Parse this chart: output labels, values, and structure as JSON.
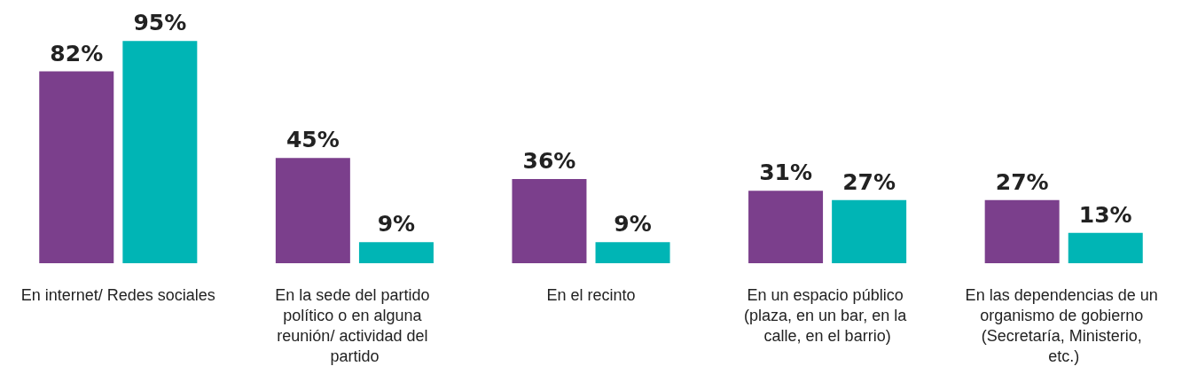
{
  "chart_data": {
    "type": "bar",
    "categories": [
      "En internet/ Redes sociales",
      "En la sede del partido político o en alguna reunión/ actividad del partido",
      "En el recinto",
      "En un espacio público (plaza, en un bar, en la calle, en el barrio)",
      "En las dependencias de un organismo de gobierno (Secretaría, Ministerio, etc.)"
    ],
    "series": [
      {
        "color": "#7b3f8c",
        "values": [
          82,
          45,
          36,
          31,
          27
        ],
        "value_labels": [
          "82%",
          "45%",
          "36%",
          "31%",
          "27%"
        ]
      },
      {
        "color": "#00b5b5",
        "values": [
          95,
          9,
          9,
          27,
          13
        ],
        "value_labels": [
          "95%",
          "9%",
          "9%",
          "27%",
          "13%"
        ]
      }
    ],
    "tick_labels": "x"
  }
}
